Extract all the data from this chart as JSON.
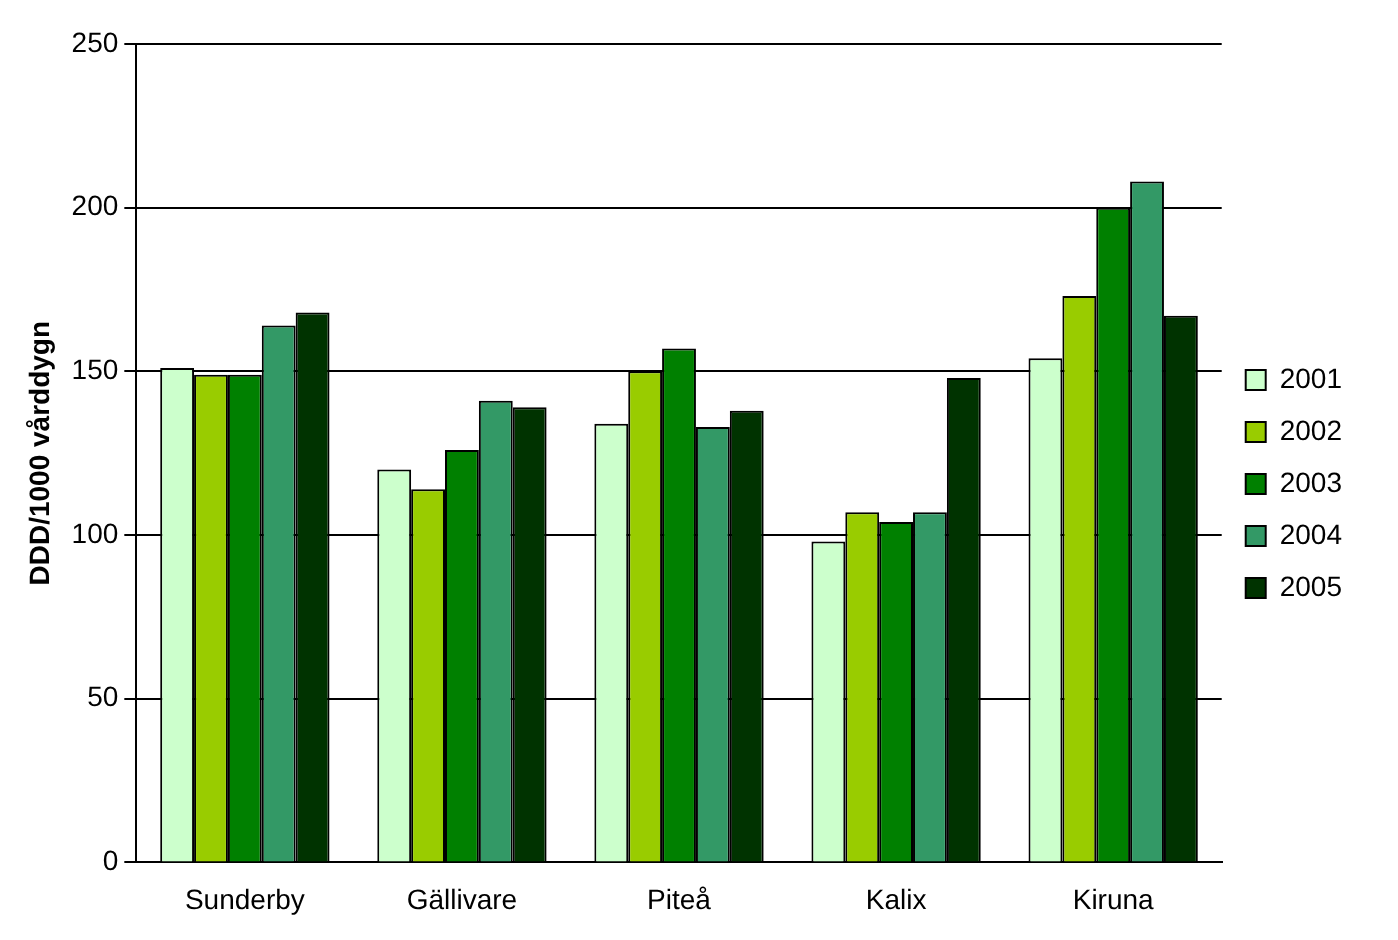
{
  "chart_data": {
    "type": "bar",
    "ylabel": "DDD/1000 vårddygn",
    "categories": [
      "Sunderby",
      "Gällivare",
      "Piteå",
      "Kalix",
      "Kiruna"
    ],
    "series": [
      {
        "name": "2001",
        "color": "#ccffcc",
        "values": [
          151,
          120,
          134,
          98,
          154
        ]
      },
      {
        "name": "2002",
        "color": "#99cc00",
        "values": [
          149,
          114,
          150,
          107,
          173
        ]
      },
      {
        "name": "2003",
        "color": "#008000",
        "values": [
          149,
          126,
          157,
          104,
          200
        ]
      },
      {
        "name": "2004",
        "color": "#339966",
        "values": [
          164,
          141,
          133,
          107,
          208
        ]
      },
      {
        "name": "2005",
        "color": "#003300",
        "values": [
          168,
          139,
          138,
          148,
          167
        ]
      }
    ],
    "ylim": [
      0,
      250
    ],
    "yticks": [
      0,
      50,
      100,
      150,
      200,
      250
    ],
    "grid": "y",
    "legend": "right"
  }
}
